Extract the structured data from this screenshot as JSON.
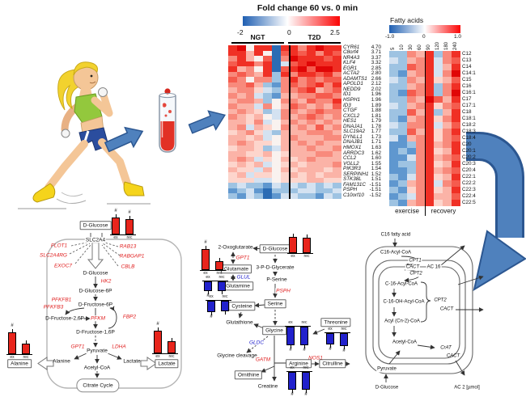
{
  "palette": {
    "9": "#c00303",
    "8": "#e00606",
    "7": "#f03025",
    "6": "#f55c4e",
    "5": "#f88a7c",
    "4": "#fbb3a7",
    "3": "#fdd5cc",
    "w": "#f9f2ef",
    "2": "#d4e2f1",
    "1": "#9ec3e2",
    "0": "#5f97cf",
    "B": "#2c6cb4"
  },
  "colors": {
    "heat_red": "#fb0505",
    "heat_blue": "#1f5fb2",
    "arrow_blue": "#4f81bd",
    "arrow_blue_dark": "#2c5791",
    "bar_red": "#e8251c",
    "bar_blue": "#2121cc",
    "gene_red": "#e02020",
    "gene_blue": "#2222cc"
  },
  "legend_main": {
    "title": "Fold change 60 vs. 0 min",
    "tick_min": "-2",
    "tick_mid": "0",
    "tick_max": "2.5"
  },
  "heatmap_main": {
    "group1": "NGT",
    "group2": "T2D",
    "rows": [
      {
        "name": "CYR61",
        "value": "4.70",
        "cells": "78w77B7757877"
      },
      {
        "name": "C8orf4",
        "value": "3.71",
        "cells": "7747wB6767576"
      },
      {
        "name": "NR4A3",
        "value": "3.37",
        "cells": "574w6B5877767"
      },
      {
        "name": "KLF4",
        "value": "3.32",
        "cells": "67757B2678777"
      },
      {
        "name": "EGR1",
        "value": "2.85",
        "cells": "745w7B6786887"
      },
      {
        "name": "ACTA2",
        "value": "2.80",
        "cells": "5654717577675"
      },
      {
        "name": "ADAMTS1",
        "value": "2.66",
        "cells": "65w5515756566"
      },
      {
        "name": "APOLD1",
        "value": "2.12",
        "cells": "5564105656757"
      },
      {
        "name": "NEDD9",
        "value": "2.02",
        "cells": "4553215567456"
      },
      {
        "name": "ID1",
        "value": "1.96",
        "cells": "5452104455665"
      },
      {
        "name": "HSPH1",
        "value": "1.96",
        "cells": "45541w5546557"
      },
      {
        "name": "ID3",
        "value": "1.89",
        "cells": "54425w4654546"
      },
      {
        "name": "CTGF",
        "value": "1.88",
        "cells": "4543125545655"
      },
      {
        "name": "CXCL2",
        "value": "1.81",
        "cells": "5434w25456545"
      },
      {
        "name": "HES1",
        "value": "1.79",
        "cells": "44352w4545454"
      },
      {
        "name": "DNAJA1",
        "value": "1.78",
        "cells": "45243w5454645"
      },
      {
        "name": "SLC19A2",
        "value": "1.77",
        "cells": "3453214445554"
      },
      {
        "name": "DYNLL1",
        "value": "1.73",
        "cells": "44342w4544455"
      },
      {
        "name": "DNAJB1",
        "value": "1.71",
        "cells": "45433w4454544"
      },
      {
        "name": "HMOX1",
        "value": "1.63",
        "cells": "3443124445445"
      },
      {
        "name": "ARRDC3",
        "value": "1.62",
        "cells": "44334w3444554"
      },
      {
        "name": "CCL2",
        "value": "1.60",
        "cells": "45423w4345444"
      },
      {
        "name": "VGLL2",
        "value": "1.55",
        "cells": "34342w3434445"
      },
      {
        "name": "PIK3R3",
        "value": "1.54",
        "cells": "43324w4344434"
      },
      {
        "name": "SERPINH1",
        "value": "1.52",
        "cells": "34233w3434344"
      },
      {
        "name": "STK38L",
        "value": "1.51",
        "cells": "33322w3334433"
      },
      {
        "name": "FAM131C",
        "value": "-1.51",
        "cells": "1211021212121"
      },
      {
        "name": "PSPH",
        "value": "-1.51",
        "cells": "0120B11122112"
      },
      {
        "name": "C10orf10",
        "value": "-1.52",
        "cells": "1021B02211021"
      }
    ]
  },
  "heatmap_fa": {
    "title": "Fatty acids",
    "tick_min": "-1.0",
    "tick_mid": "0",
    "tick_max": "1.0",
    "columns": [
      "5",
      "10",
      "30",
      "60",
      "90",
      "120",
      "180",
      "240"
    ],
    "phase1": "exercise",
    "phase2": "recovery",
    "rows": [
      {
        "name": "C12",
        "cells": "11547157"
      },
      {
        "name": "C13",
        "cells": "21457256"
      },
      {
        "name": "C14",
        "cells": "11657247"
      },
      {
        "name": "C14:1",
        "cells": "10457258"
      },
      {
        "name": "C15",
        "cells": "21547346"
      },
      {
        "name": "C16",
        "cells": "11457157"
      },
      {
        "name": "C16:1",
        "cells": "10657158"
      },
      {
        "name": "C17",
        "cells": "11548647"
      },
      {
        "name": "C17:1",
        "cells": "21457356"
      },
      {
        "name": "C18",
        "cells": "11647147"
      },
      {
        "name": "C18:1",
        "cells": "10457357"
      },
      {
        "name": "C18:2",
        "cells": "21557246"
      },
      {
        "name": "C18:3",
        "cells": "11647357"
      },
      {
        "name": "C18:4",
        "cells": "20457356"
      },
      {
        "name": "C20",
        "cells": "00157457"
      },
      {
        "name": "C20:1",
        "cells": "01057347"
      },
      {
        "name": "C20:2",
        "cells": "00257456"
      },
      {
        "name": "C20:3",
        "cells": "01157347"
      },
      {
        "name": "C20:4",
        "cells": "00157456"
      },
      {
        "name": "C22:1",
        "cells": "10257347"
      },
      {
        "name": "C22:2",
        "cells": "01457256"
      },
      {
        "name": "C22:3",
        "cells": "10357347"
      },
      {
        "name": "C22:4",
        "cells": "01257446"
      },
      {
        "name": "C22:5",
        "cells": "10457347"
      }
    ]
  },
  "bar_charts": {
    "lp_glucose": {
      "dir": "up",
      "color": "red",
      "labels": [
        "ex",
        "rec"
      ],
      "heights": [
        21,
        19
      ],
      "hashes": [
        true,
        true
      ]
    },
    "lp_alanine": {
      "dir": "up",
      "color": "red",
      "labels": [
        "ex",
        "rec"
      ],
      "heights": [
        27,
        13
      ],
      "hashes": [
        true,
        false
      ]
    },
    "lp_lactate": {
      "dir": "up",
      "color": "red",
      "labels": [
        "ex",
        "rec"
      ],
      "heights": [
        28,
        15
      ],
      "hashes": [
        true,
        false
      ]
    },
    "mp_oxo": {
      "dir": "up",
      "color": "red",
      "labels": [
        "ex",
        "rec"
      ],
      "heights": [
        26,
        11
      ],
      "hashes": [
        true,
        false
      ]
    },
    "mp_glucose": {
      "dir": "up",
      "color": "red",
      "labels": [
        "ex",
        "rec"
      ],
      "heights": [
        20,
        19
      ],
      "hashes": [
        false,
        false
      ]
    },
    "mp_glutamine": {
      "dir": "down",
      "color": "blue",
      "labels": [
        "ex",
        "rec"
      ],
      "heights": [
        12,
        12
      ],
      "hashes": [
        true,
        false
      ]
    },
    "mp_cysteine": {
      "dir": "down",
      "color": "blue",
      "labels": [
        "ex",
        "rec"
      ],
      "heights": [
        14,
        13
      ],
      "hashes": [
        true,
        false
      ]
    },
    "mp_glycine": {
      "dir": "down",
      "color": "blue",
      "labels": [
        "ex",
        "rec"
      ],
      "heights": [
        23,
        23
      ],
      "hashes": [
        true,
        true
      ]
    },
    "mp_threonine": {
      "dir": "down",
      "color": "blue",
      "labels": [
        "ex",
        "rec"
      ],
      "heights": [
        14,
        16
      ],
      "hashes": [
        true,
        true
      ]
    },
    "mp_arginine": {
      "dir": "down",
      "color": "blue",
      "labels": [
        "ex",
        "rec"
      ],
      "heights": [
        22,
        22
      ],
      "hashes": [
        true,
        true
      ]
    }
  },
  "pl": {
    "glc": "D-Glucose",
    "slc": "SLC2A4",
    "flot1": "FLOT1",
    "slc2a4rg": "SLC2A4RG",
    "exoc7": "EXOC7",
    "rab13": "RAB13",
    "rabgap1": "RABGAP1",
    "cblb": "CBLB",
    "glc2": "D-Glucose",
    "hk2": "HK2",
    "g6p": "D-Glucose-6P",
    "pfkfb1": "PFKFB1",
    "pfkfb3": "PFKFB3",
    "f6p": "D-Fructose-6P",
    "f26p": "D-Fructose-2,6P",
    "pfkm": "PFKM",
    "fbp2": "FBP2",
    "f16p": "D-Fructose-1,6P",
    "pyr": "Pyruvate",
    "gpt1": "GPT1",
    "ldha": "LDHA",
    "ala": "Alanine",
    "lac": "Lactate",
    "accoa": "Acetyl-CoA",
    "citrate": "Citrate Cycle",
    "ala_box": "Alanine",
    "lac_box": "Lactate"
  },
  "pm": {
    "oxo": "2-Oxoglutarate",
    "gpt1": "GPT1",
    "glu": "Glutamate",
    "glul": "GLUL",
    "gln": "Glutamine",
    "glc": "D-Glucose",
    "pg": "3-P-D-Glycerate",
    "pser": "P-Serine",
    "psph": "PSPH",
    "ser": "Serine",
    "cys": "Cysteine",
    "gsh": "Glutathione",
    "gly": "Glycine",
    "gldc": "GLDC",
    "glycl": "Glycine cleavage",
    "gatm": "GATM",
    "orn": "Ornithine",
    "cre": "Creatine",
    "arg": "Arginine",
    "nos1": "NOS1",
    "cit": "Citrulline",
    "thr": "Threonine"
  },
  "pr": {
    "c16fa": "C16 fatty acid",
    "c16coa": "C16-Acyl-CoA",
    "cpt1": "CPT1",
    "cact1": "CACT",
    "ac16": "AC 16",
    "cpt2": "CPT2",
    "c16acoa": "C-16-Acyl-CoA",
    "c16oh": "C-16-OH-Acyl-CoA",
    "acyl": "Acyl (Cn-2)-CoA",
    "cpt2b": "CPT2",
    "cact2": "CACT",
    "accoa": "Acetyl-CoA",
    "crat": "CrAT",
    "cact3": "CACT",
    "pyr": "Pyruvate",
    "glc": "D-Glucose",
    "ac2": "AC 2 [µmol]"
  }
}
